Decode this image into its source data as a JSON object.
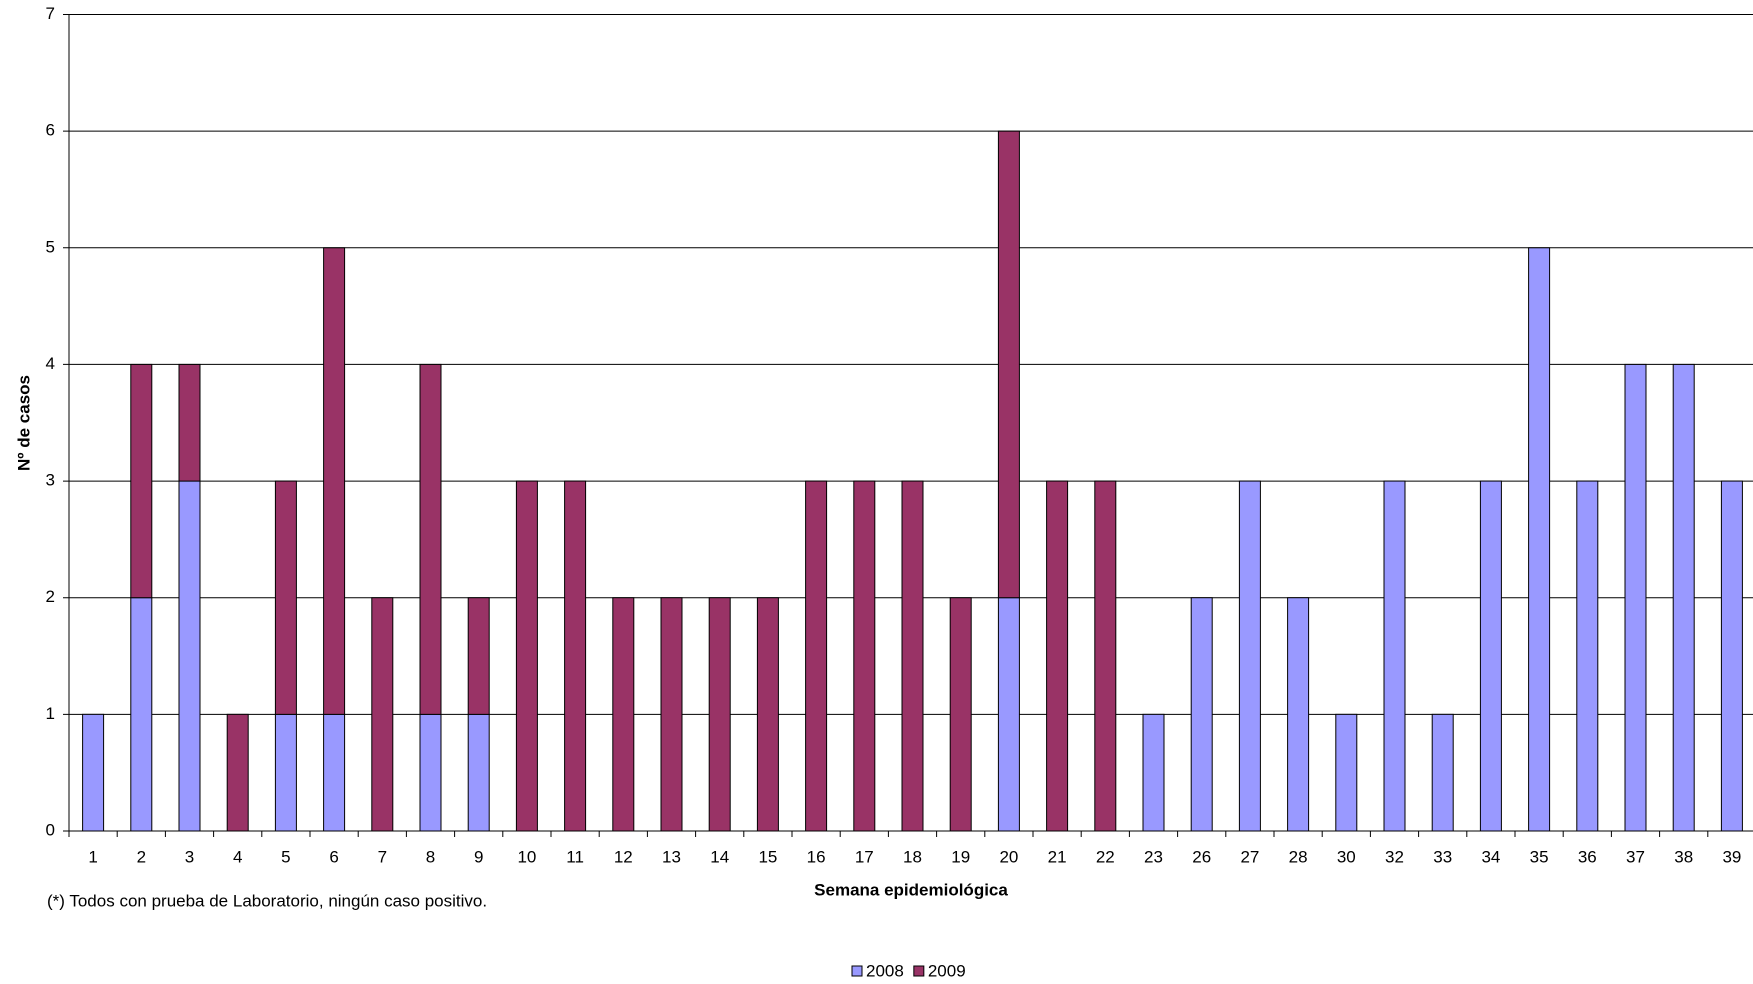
{
  "chart_data": {
    "type": "stacked_bar",
    "x_label": "Semana epidemiológica",
    "y_label": "Nº de casos",
    "note": "(*) Todos con prueba de Laboratorio, ningún caso positivo.",
    "categories": [
      "1",
      "2",
      "3",
      "4",
      "5",
      "6",
      "7",
      "8",
      "9",
      "10",
      "11",
      "12",
      "13",
      "14",
      "15",
      "16",
      "17",
      "18",
      "19",
      "20",
      "21",
      "22",
      "23",
      "26",
      "27",
      "28",
      "30",
      "32",
      "33",
      "34",
      "35",
      "36",
      "37",
      "38",
      "39"
    ],
    "series": [
      {
        "name": "2008",
        "color": "#9999ff",
        "values": [
          1,
          2,
          3,
          0,
          1,
          1,
          0,
          1,
          1,
          0,
          0,
          0,
          0,
          0,
          0,
          0,
          0,
          0,
          0,
          2,
          0,
          0,
          1,
          2,
          3,
          2,
          1,
          3,
          1,
          3,
          5,
          3,
          4,
          4,
          3
        ]
      },
      {
        "name": "2009",
        "color": "#993366",
        "values": [
          0,
          2,
          1,
          1,
          2,
          4,
          2,
          3,
          1,
          3,
          3,
          2,
          2,
          2,
          2,
          3,
          3,
          3,
          2,
          4,
          3,
          3,
          0,
          0,
          0,
          0,
          0,
          0,
          0,
          0,
          0,
          0,
          0,
          0,
          0
        ]
      }
    ],
    "ylim": [
      0,
      7
    ],
    "yticks": [
      0,
      1,
      2,
      3,
      4,
      5,
      6,
      7
    ],
    "grid": true,
    "legend": "bottom"
  }
}
